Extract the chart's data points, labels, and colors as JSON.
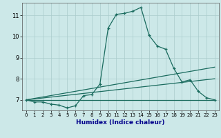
{
  "xlabel": "Humidex (Indice chaleur)",
  "bg_color": "#cce8e8",
  "grid_color": "#aacccc",
  "line_color": "#1a6b5e",
  "xlim": [
    -0.5,
    23.5
  ],
  "ylim": [
    6.5,
    11.6
  ],
  "yticks": [
    7,
    8,
    9,
    10,
    11
  ],
  "xticks": [
    0,
    1,
    2,
    3,
    4,
    5,
    6,
    7,
    8,
    9,
    10,
    11,
    12,
    13,
    14,
    15,
    16,
    17,
    18,
    19,
    20,
    21,
    22,
    23
  ],
  "series": {
    "main": {
      "x": [
        0,
        1,
        2,
        3,
        4,
        5,
        6,
        7,
        8,
        9,
        10,
        11,
        12,
        13,
        14,
        15,
        16,
        17,
        18,
        19,
        20,
        21,
        22,
        23
      ],
      "y": [
        7.0,
        6.9,
        6.9,
        6.8,
        6.75,
        6.62,
        6.72,
        7.2,
        7.25,
        7.75,
        10.4,
        11.05,
        11.1,
        11.2,
        11.38,
        10.05,
        9.55,
        9.4,
        8.5,
        7.85,
        7.95,
        7.4,
        7.1,
        7.0
      ]
    },
    "upper": {
      "x": [
        0,
        23
      ],
      "y": [
        7.0,
        8.55
      ]
    },
    "mid": {
      "x": [
        0,
        23
      ],
      "y": [
        7.0,
        8.0
      ]
    },
    "lower": {
      "x": [
        0,
        23
      ],
      "y": [
        7.0,
        7.0
      ]
    }
  }
}
